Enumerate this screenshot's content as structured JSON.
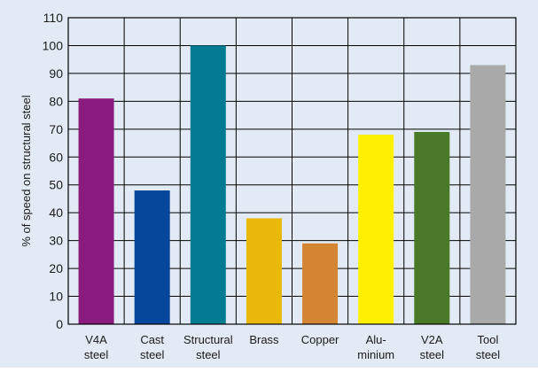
{
  "chart_data": {
    "type": "bar",
    "title": "",
    "xlabel": "",
    "ylabel": "% of speed on structural steel",
    "ylim": [
      0,
      110
    ],
    "yticks": [
      0,
      10,
      20,
      30,
      40,
      50,
      60,
      70,
      80,
      90,
      100,
      110
    ],
    "grid": true,
    "categories": [
      [
        "V4A",
        "steel"
      ],
      [
        "Cast",
        "steel"
      ],
      [
        "Structural",
        "steel"
      ],
      [
        "Brass"
      ],
      [
        "Copper"
      ],
      [
        "Alu-",
        "minium"
      ],
      [
        "V2A",
        "steel"
      ],
      [
        "Tool",
        "steel"
      ]
    ],
    "values": [
      81,
      48,
      100,
      38,
      29,
      68,
      69,
      93
    ],
    "colors": [
      "#8a1b7f",
      "#07479b",
      "#007b92",
      "#e9b80a",
      "#d48534",
      "#fff000",
      "#497a27",
      "#a9a9a9"
    ],
    "background": "#e2ebf5"
  }
}
